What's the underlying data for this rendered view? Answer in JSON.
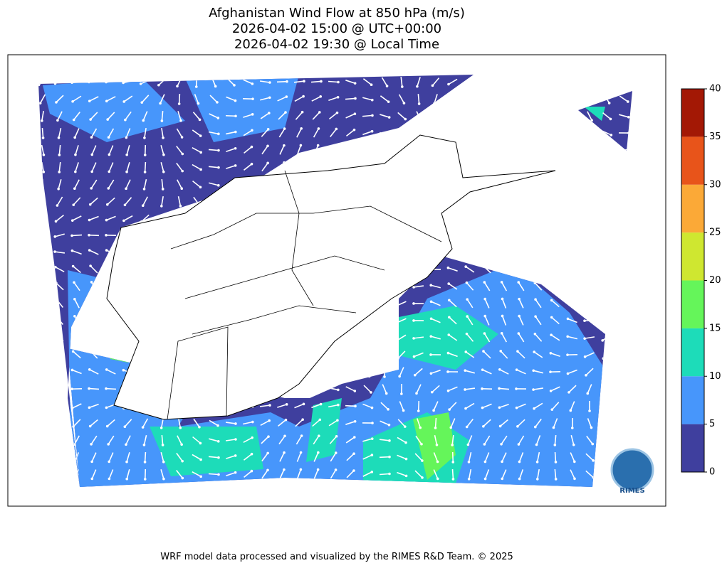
{
  "header": {
    "title": [
      "Afghanistan Wind Flow at 850 hPa (m/s)",
      "2026-04-02 15:00 @ UTC+00:00",
      "2026-04-02 19:30 @ Local Time"
    ]
  },
  "colorbar": {
    "range": [
      0,
      40
    ],
    "ticks": [
      0,
      5,
      10,
      15,
      20,
      25,
      30,
      35,
      40
    ],
    "colors": [
      "#3f3f9e",
      "#4796fb",
      "#1ddcb9",
      "#65f55a",
      "#cfe730",
      "#fba937",
      "#e8541a",
      "#a31805"
    ]
  },
  "logo": {
    "label": "RIMES"
  },
  "footer": {
    "text": "WRF model data processed and visualized by the RIMES R&D Team. © 2025"
  }
}
